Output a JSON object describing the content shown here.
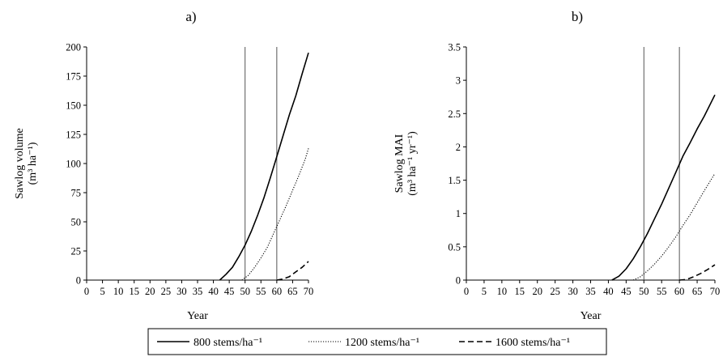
{
  "chart_data": [
    {
      "type": "line",
      "panel_label": "a)",
      "xlabel": "Year",
      "ylabel_line1": "Sawlog volume",
      "ylabel_line2": "(m³ ha⁻¹)",
      "xlim": [
        0,
        70
      ],
      "ylim": [
        0,
        200
      ],
      "x_ticks": [
        0,
        5,
        10,
        15,
        20,
        25,
        30,
        35,
        40,
        45,
        50,
        55,
        60,
        65,
        70
      ],
      "y_ticks": [
        0,
        25,
        50,
        75,
        100,
        125,
        150,
        175,
        200
      ],
      "y_tick_labels": [
        "0",
        "25",
        "50",
        "75",
        "100",
        "125",
        "150",
        "175",
        "200"
      ],
      "vertical_lines": [
        50,
        60
      ],
      "grid": false,
      "series": [
        {
          "name": "800 stems/ha⁻¹",
          "style": "solid",
          "x": [
            42,
            44,
            46,
            48,
            50,
            52,
            54,
            56,
            58,
            60,
            62,
            64,
            66,
            68,
            70
          ],
          "y": [
            0,
            5,
            11,
            20,
            30,
            42,
            56,
            71,
            88,
            106,
            124,
            142,
            158,
            177,
            195
          ]
        },
        {
          "name": "1200 stems/ha⁻¹",
          "style": "dotted",
          "x": [
            49,
            51,
            53,
            55,
            57,
            59,
            61,
            63,
            65,
            67,
            69,
            70
          ],
          "y": [
            0,
            4,
            11,
            19,
            28,
            40,
            52,
            64,
            77,
            90,
            104,
            113
          ]
        },
        {
          "name": "1600 stems/ha⁻¹",
          "style": "dashed",
          "x": [
            60,
            62,
            64,
            66,
            68,
            70
          ],
          "y": [
            0,
            1,
            3,
            7,
            11,
            16
          ]
        }
      ]
    },
    {
      "type": "line",
      "panel_label": "b)",
      "xlabel": "Year",
      "ylabel_line1": "Sawlog MAI",
      "ylabel_line2": "(m³ ha⁻¹ yr⁻¹)",
      "xlim": [
        0,
        70
      ],
      "ylim": [
        0,
        3.5
      ],
      "x_ticks": [
        0,
        5,
        10,
        15,
        20,
        25,
        30,
        35,
        40,
        45,
        50,
        55,
        60,
        65,
        70
      ],
      "y_ticks": [
        0,
        0.5,
        1,
        1.5,
        2,
        2.5,
        3,
        3.5
      ],
      "y_tick_labels": [
        "0",
        "0.5",
        "1",
        "1.5",
        "2",
        "2.5",
        "3",
        "3.5"
      ],
      "vertical_lines": [
        50,
        60
      ],
      "grid": false,
      "series": [
        {
          "name": "800 stems/ha⁻¹",
          "style": "solid",
          "x": [
            41,
            43,
            45,
            47,
            49,
            51,
            53,
            55,
            57,
            59,
            61,
            63,
            65,
            67,
            70
          ],
          "y": [
            0,
            0.06,
            0.17,
            0.32,
            0.5,
            0.7,
            0.92,
            1.14,
            1.38,
            1.62,
            1.86,
            2.06,
            2.27,
            2.46,
            2.78
          ]
        },
        {
          "name": "1200 stems/ha⁻¹",
          "style": "dotted",
          "x": [
            47,
            49,
            51,
            53,
            55,
            57,
            59,
            61,
            63,
            65,
            67,
            70
          ],
          "y": [
            0,
            0.05,
            0.14,
            0.24,
            0.36,
            0.5,
            0.65,
            0.82,
            0.98,
            1.16,
            1.34,
            1.6
          ]
        },
        {
          "name": "1600 stems/ha⁻¹",
          "style": "dashed",
          "x": [
            60,
            62,
            64,
            66,
            68,
            70
          ],
          "y": [
            0,
            0.01,
            0.05,
            0.1,
            0.16,
            0.23
          ]
        }
      ]
    }
  ],
  "legend": {
    "placement": "bottom-center",
    "entries": [
      {
        "label": "800 stems/ha⁻¹",
        "style": "solid"
      },
      {
        "label": "1200 stems/ha⁻¹",
        "style": "dotted"
      },
      {
        "label": "1600 stems/ha⁻¹",
        "style": "dashed"
      }
    ]
  }
}
